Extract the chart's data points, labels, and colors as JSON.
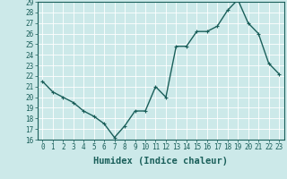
{
  "x": [
    0,
    1,
    2,
    3,
    4,
    5,
    6,
    7,
    8,
    9,
    10,
    11,
    12,
    13,
    14,
    15,
    16,
    17,
    18,
    19,
    20,
    21,
    22,
    23
  ],
  "y": [
    21.5,
    20.5,
    20.0,
    19.5,
    18.7,
    18.2,
    17.5,
    16.2,
    17.3,
    18.7,
    18.7,
    21.0,
    20.0,
    24.8,
    24.8,
    26.2,
    26.2,
    26.7,
    28.2,
    29.2,
    27.0,
    26.0,
    23.2,
    22.2
  ],
  "line_color": "#1a5f5a",
  "marker": "+",
  "marker_color": "#1a5f5a",
  "marker_size": 3,
  "marker_linewidth": 0.8,
  "xlabel": "Humidex (Indice chaleur)",
  "background_color": "#cce9e9",
  "grid_color": "#ffffff",
  "ylim": [
    16,
    29
  ],
  "xlim": [
    -0.5,
    23.5
  ],
  "yticks": [
    16,
    17,
    18,
    19,
    20,
    21,
    22,
    23,
    24,
    25,
    26,
    27,
    28,
    29
  ],
  "xticks": [
    0,
    1,
    2,
    3,
    4,
    5,
    6,
    7,
    8,
    9,
    10,
    11,
    12,
    13,
    14,
    15,
    16,
    17,
    18,
    19,
    20,
    21,
    22,
    23
  ],
  "tick_fontsize": 5.5,
  "xlabel_fontsize": 7.5,
  "linewidth": 1.0
}
